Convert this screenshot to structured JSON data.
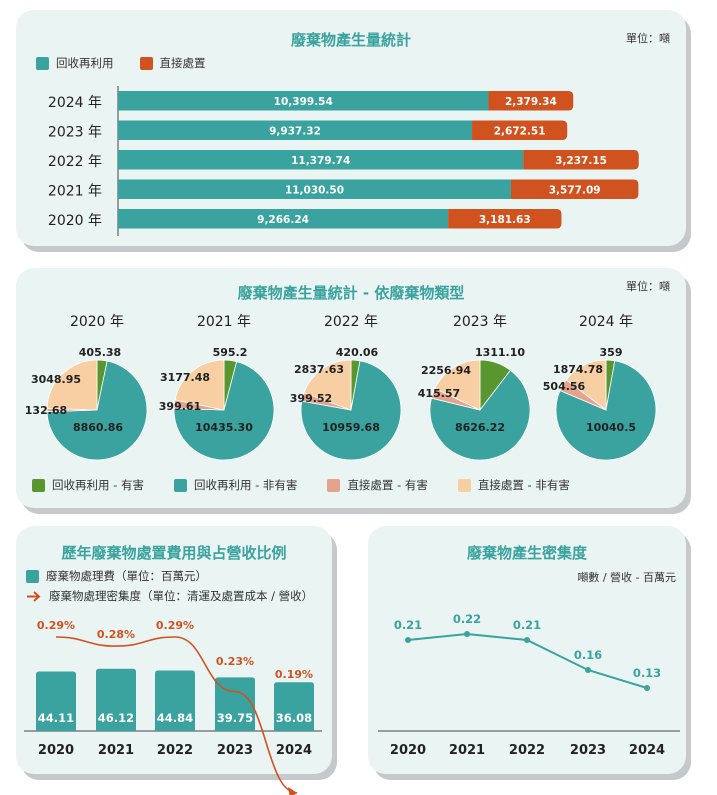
{
  "colors": {
    "teal": "#3aa39f",
    "orange": "#d0531f",
    "green": "#5a962f",
    "salmon": "#e5a28c",
    "peach": "#f7cfa3",
    "title": "#3aa39f",
    "panel_bg": "#eaf4f3"
  },
  "panel1": {
    "title": "廢棄物產生量統計",
    "unit": "單位：噸",
    "legend": [
      "回收再利用",
      "直接處置"
    ]
  },
  "panel2": {
    "title": "廢棄物產生量統計 - 依廢棄物類型",
    "unit": "單位：噸",
    "legend": [
      "回收再利用 - 有害",
      "回收再利用 - 非有害",
      "直接處置 - 有害",
      "直接處置 - 非有害"
    ]
  },
  "panel3": {
    "title": "歷年廢棄物處置費用與占營收比例",
    "legend": [
      "廢棄物處理費（單位：百萬元）",
      "廢棄物處理密集度（單位：清運及處置成本 / 營收）"
    ]
  },
  "panel4": {
    "title": "廢棄物產生密集度",
    "unit": "噸數 / 營收 - 百萬元"
  },
  "chart_data": [
    {
      "type": "bar",
      "orientation": "horizontal",
      "stacked": true,
      "title": "廢棄物產生量統計",
      "categories": [
        "2024 年",
        "2023 年",
        "2022 年",
        "2021 年",
        "2020 年"
      ],
      "series": [
        {
          "name": "回收再利用",
          "values": [
            10399.54,
            9937.32,
            11379.74,
            11030.5,
            9266.24
          ],
          "labels": [
            "10,399.54",
            "9,937.32",
            "11,379.74",
            "11,030.50",
            "9,266.24"
          ]
        },
        {
          "name": "直接處置",
          "values": [
            2379.34,
            2672.51,
            3237.15,
            3577.09,
            3181.63
          ],
          "labels": [
            "2,379.34",
            "2,672.51",
            "3,237.15",
            "3,577.09",
            "3,181.63"
          ]
        }
      ],
      "xlim": [
        0,
        16000
      ]
    },
    {
      "type": "pie",
      "title": "廢棄物產生量統計 - 依廢棄物類型",
      "series_names": [
        "回收再利用 - 有害",
        "回收再利用 - 非有害",
        "直接處置 - 有害",
        "直接處置 - 非有害"
      ],
      "pies": [
        {
          "label": "2020 年",
          "values": [
            405.38,
            8860.86,
            132.68,
            3048.95
          ],
          "labels": [
            "405.38",
            "8860.86",
            "132.68",
            "3048.95"
          ]
        },
        {
          "label": "2021 年",
          "values": [
            595.2,
            10435.3,
            399.61,
            3177.48
          ],
          "labels": [
            "595.2",
            "10435.30",
            "399.61",
            "3177.48"
          ]
        },
        {
          "label": "2022 年",
          "values": [
            420.06,
            10959.68,
            399.52,
            2837.63
          ],
          "labels": [
            "420.06",
            "10959.68",
            "399.52",
            "2837.63"
          ]
        },
        {
          "label": "2023 年",
          "values": [
            1311.1,
            8626.22,
            415.57,
            2256.94
          ],
          "labels": [
            "1311.10",
            "8626.22",
            "415.57",
            "2256.94"
          ]
        },
        {
          "label": "2024 年",
          "values": [
            359,
            10040.5,
            504.56,
            1874.78
          ],
          "labels": [
            "359",
            "10040.5",
            "504.56",
            "1874.78"
          ]
        }
      ]
    },
    {
      "type": "bar",
      "title": "歷年廢棄物處置費用與占營收比例",
      "categories": [
        "2020",
        "2021",
        "2022",
        "2023",
        "2024"
      ],
      "series": [
        {
          "name": "廢棄物處理費（單位：百萬元）",
          "values": [
            44.11,
            46.12,
            44.84,
            39.75,
            36.08
          ],
          "labels": [
            "44.11",
            "46.12",
            "44.84",
            "39.75",
            "36.08"
          ]
        },
        {
          "name": "廢棄物處理密集度（單位：清運及處置成本 / 營收）",
          "type": "line",
          "values": [
            0.29,
            0.28,
            0.29,
            0.23,
            0.19
          ],
          "labels": [
            "0.29%",
            "0.28%",
            "0.29%",
            "0.23%",
            "0.19%"
          ]
        }
      ],
      "ylim": [
        0,
        60
      ]
    },
    {
      "type": "line",
      "title": "廢棄物產生密集度",
      "ylabel": "噸數 / 營收 - 百萬元",
      "categories": [
        "2020",
        "2021",
        "2022",
        "2023",
        "2024"
      ],
      "values": [
        0.21,
        0.22,
        0.21,
        0.16,
        0.13
      ],
      "labels": [
        "0.21",
        "0.22",
        "0.21",
        "0.16",
        "0.13"
      ]
    }
  ]
}
